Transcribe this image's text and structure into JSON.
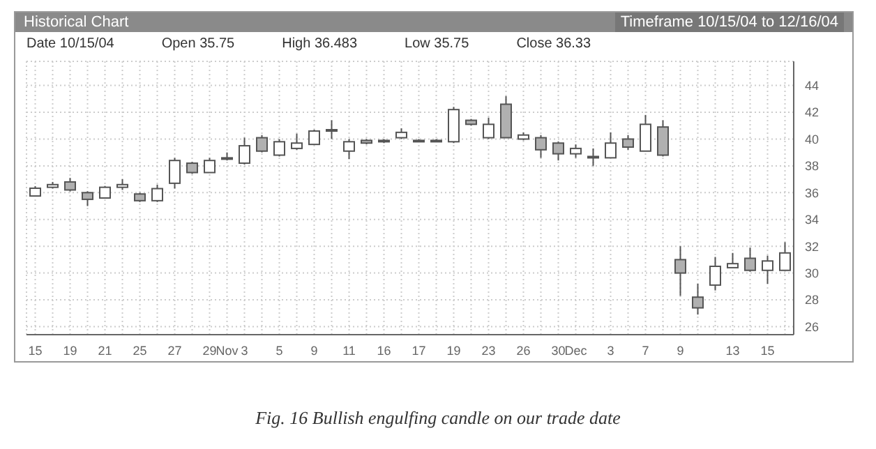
{
  "chart_data": {
    "type": "candlestick",
    "title": "Historical Chart",
    "subtitle": "Timeframe 10/15/04 to 12/16/04",
    "annotations": [
      "Date 10/15/04",
      "Open 35.75",
      "High 36.483",
      "Low 35.75",
      "Close 36.33",
      "Fig. 16 Bullish engulfing candle on our trade date"
    ],
    "categories": [
      "15",
      null,
      "19",
      null,
      "21",
      null,
      "25",
      null,
      "27",
      null,
      "29",
      "Nov",
      "3",
      null,
      "5",
      null,
      "9",
      null,
      "11",
      null,
      "16",
      null,
      "17",
      null,
      "19",
      null,
      "23",
      null,
      "26",
      null,
      "30",
      "Dec",
      null,
      "3",
      null,
      "7",
      null,
      "9",
      null,
      null,
      "13",
      null,
      "15",
      null
    ],
    "ohlc": [
      [
        35.75,
        36.483,
        35.75,
        36.33
      ],
      [
        36.4,
        36.8,
        36.3,
        36.6
      ],
      [
        36.8,
        37.1,
        36.1,
        36.2
      ],
      [
        36.0,
        36.1,
        35.0,
        35.5
      ],
      [
        35.6,
        36.5,
        35.6,
        36.4
      ],
      [
        36.4,
        37.0,
        36.2,
        36.6
      ],
      [
        35.9,
        36.0,
        35.3,
        35.4
      ],
      [
        35.4,
        36.6,
        35.3,
        36.3
      ],
      [
        36.7,
        38.6,
        36.3,
        38.4
      ],
      [
        38.2,
        38.3,
        37.4,
        37.5
      ],
      [
        37.5,
        38.6,
        37.5,
        38.4
      ],
      [
        38.5,
        39.0,
        38.4,
        38.6
      ],
      [
        38.2,
        40.1,
        38.1,
        39.5
      ],
      [
        40.1,
        40.3,
        39.0,
        39.1
      ],
      [
        38.8,
        40.0,
        38.7,
        39.8
      ],
      [
        39.3,
        40.4,
        39.2,
        39.7
      ],
      [
        39.6,
        40.7,
        39.6,
        40.6
      ],
      [
        40.7,
        41.4,
        40.0,
        40.6
      ],
      [
        39.1,
        40.0,
        38.5,
        39.8
      ],
      [
        39.9,
        40.0,
        39.6,
        39.7
      ],
      [
        39.8,
        40.0,
        39.7,
        39.9
      ],
      [
        40.1,
        40.8,
        40.0,
        40.5
      ],
      [
        39.9,
        40.0,
        39.8,
        39.9
      ],
      [
        39.9,
        40.0,
        39.8,
        39.9
      ],
      [
        39.8,
        42.4,
        39.7,
        42.2
      ],
      [
        41.4,
        41.5,
        41.0,
        41.1
      ],
      [
        40.1,
        41.6,
        40.0,
        41.1
      ],
      [
        42.6,
        43.2,
        40.1,
        40.1
      ],
      [
        40.0,
        40.5,
        39.9,
        40.3
      ],
      [
        40.1,
        40.3,
        38.6,
        39.2
      ],
      [
        39.7,
        39.8,
        38.4,
        38.9
      ],
      [
        38.9,
        39.6,
        38.6,
        39.3
      ],
      [
        38.7,
        39.3,
        38.0,
        38.7
      ],
      [
        38.6,
        40.5,
        38.6,
        39.7
      ],
      [
        40.0,
        40.3,
        39.2,
        39.4
      ],
      [
        39.1,
        41.8,
        39.1,
        41.1
      ],
      [
        40.9,
        41.4,
        38.7,
        38.8
      ],
      [
        31.0,
        32.0,
        28.3,
        30.0
      ],
      [
        28.2,
        29.2,
        26.9,
        27.4
      ],
      [
        29.1,
        31.2,
        28.7,
        30.5
      ],
      [
        30.4,
        31.5,
        30.4,
        30.7
      ],
      [
        31.1,
        31.9,
        30.1,
        30.2
      ],
      [
        30.2,
        31.3,
        29.2,
        30.9
      ],
      [
        30.2,
        32.3,
        30.2,
        31.5
      ]
    ],
    "ylim": [
      25.4,
      45.8
    ],
    "yticks": [
      26,
      28,
      30,
      32,
      34,
      36,
      38,
      40,
      42,
      44
    ],
    "grid": true
  }
}
